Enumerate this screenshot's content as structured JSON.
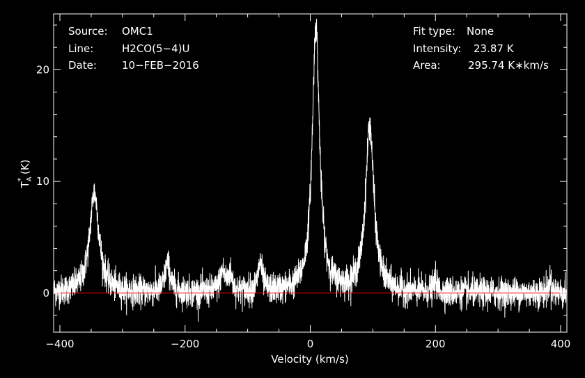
{
  "header_left": {
    "source_label": "Source:",
    "source_value": "OMC1",
    "line_label": "Line:",
    "line_value": "H2CO(5−4)U",
    "date_label": "Date:",
    "date_value": "10−FEB−2016"
  },
  "header_right": {
    "fit_label": "Fit type:",
    "fit_value": "None",
    "intensity_label": "Intensity:",
    "intensity_value": "23.87 K",
    "area_label": "Area:",
    "area_value": "295.74 K∗km/s"
  },
  "chart_data": {
    "type": "line",
    "xlabel": "Velocity (km/s)",
    "ylabel_main": "T",
    "ylabel_sub": "A",
    "ylabel_sup": "*",
    "ylabel_unit": "(K)",
    "xlim": [
      -410,
      410
    ],
    "ylim": [
      -3.5,
      25
    ],
    "x_ticks": [
      -400,
      -200,
      0,
      200,
      400
    ],
    "x_tick_labels": [
      "−400",
      "−200",
      "0",
      "200",
      "400"
    ],
    "y_ticks": [
      0,
      10,
      20
    ],
    "y_tick_labels": [
      "0",
      "10",
      "20"
    ],
    "baseline": 0,
    "noise_rms": 0.9,
    "peaks": [
      {
        "x": -345,
        "height": 9.0,
        "width": 9
      },
      {
        "x": -228,
        "height": 2.6,
        "width": 5
      },
      {
        "x": -140,
        "height": 1.8,
        "width": 5
      },
      {
        "x": -128,
        "height": 1.5,
        "width": 4
      },
      {
        "x": -80,
        "height": 2.6,
        "width": 4
      },
      {
        "x": 9,
        "height": 23.87,
        "width": 7
      },
      {
        "x": 95,
        "height": 15.0,
        "width": 8
      },
      {
        "x": 200,
        "height": 1.0,
        "width": 3
      },
      {
        "x": 383,
        "height": 1.3,
        "width": 2
      }
    ],
    "colors": {
      "background": "#000000",
      "spectrum": "#ffffff",
      "baseline": "#ff0000",
      "frame": "#ffffff"
    }
  }
}
